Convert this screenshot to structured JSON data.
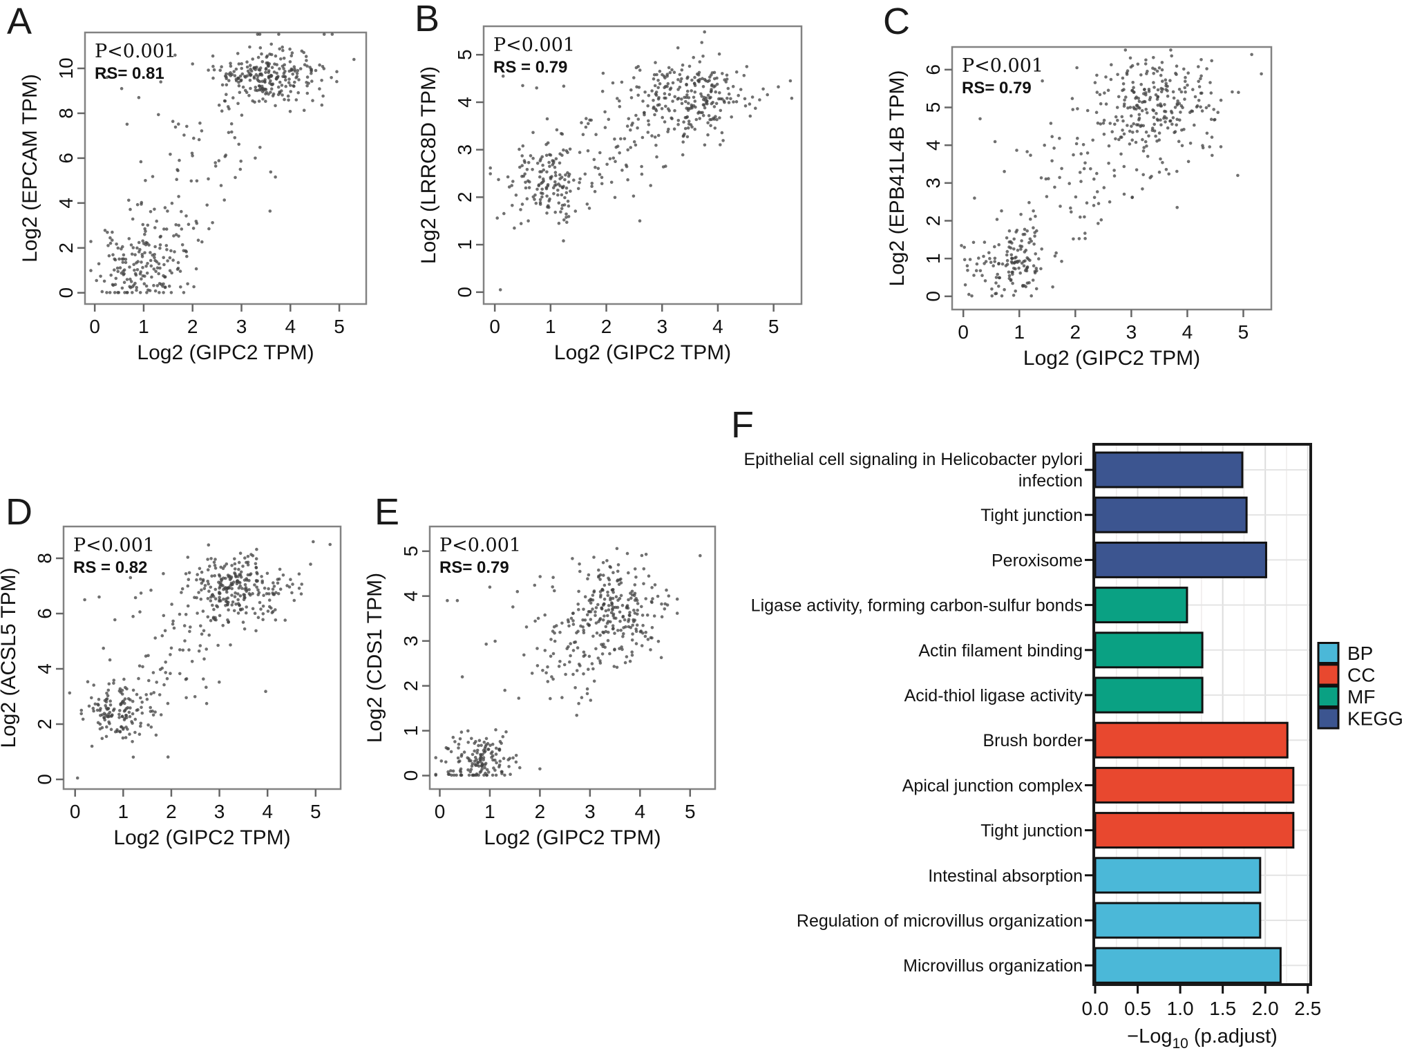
{
  "figure": {
    "description": "Five gene correlation scatter plots (A-E) and one GO/KEGG enrichment horizontal bar chart (F)",
    "colors": {
      "scatter_point": "#404040",
      "scatter_frame": "#828282",
      "bar_frame": "#1a1a1a",
      "grid_major": "#dcdcdc",
      "grid_minor": "#efeceb",
      "grid_row": "#e4e4e4"
    }
  },
  "chart_data": [
    {
      "type": "scatter",
      "panel_label": "A",
      "annotations": {
        "p": "P<0.001",
        "rs": "RS= 0.81"
      },
      "xlabel": "Log2 (GIPC2 TPM)",
      "ylabel": "Log2 (EPCAM TPM)",
      "xlim": [
        -0.2,
        5.55
      ],
      "ylim": [
        -0.5,
        11.6
      ],
      "xticks": [
        0,
        1,
        2,
        3,
        4,
        5
      ],
      "yticks": [
        0,
        2,
        4,
        6,
        8,
        10
      ],
      "seed": 11,
      "clusters": [
        {
          "n": 150,
          "cx": 0.9,
          "cy": 1.0,
          "sx": 0.42,
          "sy": 0.75
        },
        {
          "n": 55,
          "cx": 1.35,
          "cy": 2.9,
          "sx": 0.5,
          "sy": 1.0
        },
        {
          "n": 45,
          "cx": 2.4,
          "cy": 6.3,
          "sx": 0.7,
          "sy": 1.6
        },
        {
          "n": 250,
          "cx": 3.55,
          "cy": 9.7,
          "sx": 0.55,
          "sy": 0.62
        }
      ],
      "outliers": [
        [
          0.25,
          9.6
        ],
        [
          0.55,
          9.1
        ],
        [
          0.9,
          8.7
        ],
        [
          1.35,
          9.4
        ],
        [
          2.0,
          10.2
        ],
        [
          5.3,
          10.4
        ],
        [
          0.15,
          0.05
        ],
        [
          1.9,
          0.4
        ],
        [
          2.6,
          8.1
        ]
      ]
    },
    {
      "type": "scatter",
      "panel_label": "B",
      "annotations": {
        "p": "P<0.001",
        "rs": "RS = 0.79"
      },
      "xlabel": "Log2 (GIPC2 TPM)",
      "ylabel": "Log2 (LRRC8D TPM)",
      "xlim": [
        -0.2,
        5.5
      ],
      "ylim": [
        -0.25,
        5.6
      ],
      "xticks": [
        0,
        1,
        2,
        3,
        4,
        5
      ],
      "yticks": [
        0,
        1,
        2,
        3,
        4,
        5
      ],
      "seed": 22,
      "clusters": [
        {
          "n": 150,
          "cx": 0.9,
          "cy": 2.35,
          "sx": 0.4,
          "sy": 0.38
        },
        {
          "n": 70,
          "cx": 2.2,
          "cy": 3.05,
          "sx": 0.55,
          "sy": 0.5
        },
        {
          "n": 255,
          "cx": 3.5,
          "cy": 4.1,
          "sx": 0.55,
          "sy": 0.42
        }
      ],
      "outliers": [
        [
          0.15,
          4.55
        ],
        [
          0.5,
          4.35
        ],
        [
          0.75,
          4.3
        ],
        [
          1.15,
          1.45
        ],
        [
          0.6,
          1.5
        ],
        [
          5.3,
          4.45
        ],
        [
          0.1,
          0.05
        ],
        [
          2.6,
          1.5
        ],
        [
          0.35,
          1.35
        ]
      ]
    },
    {
      "type": "scatter",
      "panel_label": "C",
      "annotations": {
        "p": "P<0.001",
        "rs": "RS= 0.79"
      },
      "xlabel": "Log2 (GIPC2 TPM)",
      "ylabel": "Log2 (EPB41L4B TPM)",
      "xlim": [
        -0.2,
        5.5
      ],
      "ylim": [
        -0.35,
        6.6
      ],
      "xticks": [
        0,
        1,
        2,
        3,
        4,
        5
      ],
      "yticks": [
        0,
        1,
        2,
        3,
        4,
        5,
        6
      ],
      "seed": 33,
      "clusters": [
        {
          "n": 145,
          "cx": 0.85,
          "cy": 0.95,
          "sx": 0.4,
          "sy": 0.5
        },
        {
          "n": 70,
          "cx": 2.1,
          "cy": 3.0,
          "sx": 0.6,
          "sy": 0.85
        },
        {
          "n": 265,
          "cx": 3.4,
          "cy": 5.0,
          "sx": 0.6,
          "sy": 0.68
        }
      ],
      "outliers": [
        [
          0.3,
          4.7
        ],
        [
          5.15,
          6.4
        ],
        [
          1.45,
          4.0
        ],
        [
          0.2,
          2.6
        ],
        [
          4.9,
          3.2
        ],
        [
          0.1,
          0.05
        ]
      ]
    },
    {
      "type": "scatter",
      "panel_label": "D",
      "annotations": {
        "p": "P<0.001",
        "rs": "RS = 0.82"
      },
      "xlabel": "Log2 (GIPC2 TPM)",
      "ylabel": "Log2 (ACSL5 TPM)",
      "xlim": [
        -0.24,
        5.52
      ],
      "ylim": [
        -0.35,
        9.15
      ],
      "xticks": [
        0,
        1,
        2,
        3,
        4,
        5
      ],
      "yticks": [
        0,
        2,
        4,
        6,
        8
      ],
      "seed": 44,
      "clusters": [
        {
          "n": 145,
          "cx": 0.9,
          "cy": 2.4,
          "sx": 0.4,
          "sy": 0.5
        },
        {
          "n": 65,
          "cx": 2.0,
          "cy": 4.6,
          "sx": 0.6,
          "sy": 1.0
        },
        {
          "n": 260,
          "cx": 3.4,
          "cy": 6.9,
          "sx": 0.55,
          "sy": 0.58
        }
      ],
      "outliers": [
        [
          0.2,
          6.5
        ],
        [
          0.5,
          6.6
        ],
        [
          4.95,
          8.6
        ],
        [
          5.3,
          8.5
        ],
        [
          0.35,
          1.2
        ],
        [
          1.15,
          7.3
        ],
        [
          0.05,
          0.05
        ]
      ]
    },
    {
      "type": "scatter",
      "panel_label": "E",
      "annotations": {
        "p": "P<0.001",
        "rs": "RS= 0.79"
      },
      "xlabel": "Log2 (GIPC2 TPM)",
      "ylabel": "Log2 (CDS1 TPM)",
      "xlim": [
        -0.2,
        5.5
      ],
      "ylim": [
        -0.3,
        5.55
      ],
      "xticks": [
        0,
        1,
        2,
        3,
        4,
        5
      ],
      "yticks": [
        0,
        1,
        2,
        3,
        4,
        5
      ],
      "seed": 55,
      "clusters": [
        {
          "n": 150,
          "cx": 0.75,
          "cy": 0.35,
          "sx": 0.35,
          "sy": 0.3
        },
        {
          "n": 80,
          "cx": 2.6,
          "cy": 2.6,
          "sx": 0.6,
          "sy": 0.7
        },
        {
          "n": 240,
          "cx": 3.5,
          "cy": 3.7,
          "sx": 0.5,
          "sy": 0.52
        }
      ],
      "outliers": [
        [
          0.15,
          3.9
        ],
        [
          0.35,
          3.9
        ],
        [
          1.0,
          4.2
        ],
        [
          1.55,
          4.1
        ],
        [
          5.2,
          4.9
        ],
        [
          0.45,
          2.2
        ],
        [
          2.0,
          0.15
        ],
        [
          1.3,
          1.9
        ]
      ]
    },
    {
      "type": "bar",
      "panel_label": "F",
      "orientation": "horizontal",
      "xlabel_text": "−Log10 (p.adjust)",
      "xlabel": {
        "prefix": "−Log",
        "sub": "10",
        "suffix": " (p.adjust)"
      },
      "xticks": [
        "0.0",
        "0.5",
        "1.0",
        "1.5",
        "2.0",
        "2.5"
      ],
      "xlim": [
        0,
        2.51
      ],
      "categories": [
        {
          "label": "Epithelial cell signaling in Helicobacter pylori infection",
          "lines": [
            "Epithelial cell signaling in Helicobacter pylori",
            "infection"
          ],
          "group": "KEGG",
          "value": 1.73
        },
        {
          "label": "Tight junction",
          "group": "KEGG",
          "value": 1.78
        },
        {
          "label": "Peroxisome",
          "group": "KEGG",
          "value": 2.01
        },
        {
          "label": "Ligase activity, forming carbon-sulfur bonds",
          "group": "MF",
          "value": 1.08
        },
        {
          "label": "Actin filament binding",
          "group": "MF",
          "value": 1.26
        },
        {
          "label": "Acid-thiol ligase activity",
          "group": "MF",
          "value": 1.26
        },
        {
          "label": "Brush border",
          "group": "CC",
          "value": 2.26
        },
        {
          "label": "Apical junction complex",
          "group": "CC",
          "value": 2.33
        },
        {
          "label": "Tight junction",
          "group": "CC",
          "value": 2.33
        },
        {
          "label": "Intestinal absorption",
          "group": "BP",
          "value": 1.94
        },
        {
          "label": "Regulation of microvillus organization",
          "group": "BP",
          "value": 1.94
        },
        {
          "label": "Microvillus organization",
          "group": "BP",
          "value": 2.18
        }
      ],
      "group_colors": {
        "BP": "#4bb8d8",
        "CC": "#e8482f",
        "MF": "#0aa183",
        "KEGG": "#3c5590"
      },
      "legend": [
        {
          "label": "BP",
          "color": "#4bb8d8"
        },
        {
          "label": "CC",
          "color": "#e8482f"
        },
        {
          "label": "MF",
          "color": "#0aa183"
        },
        {
          "label": "KEGG",
          "color": "#3c5590"
        }
      ],
      "legend_position": "right"
    }
  ]
}
